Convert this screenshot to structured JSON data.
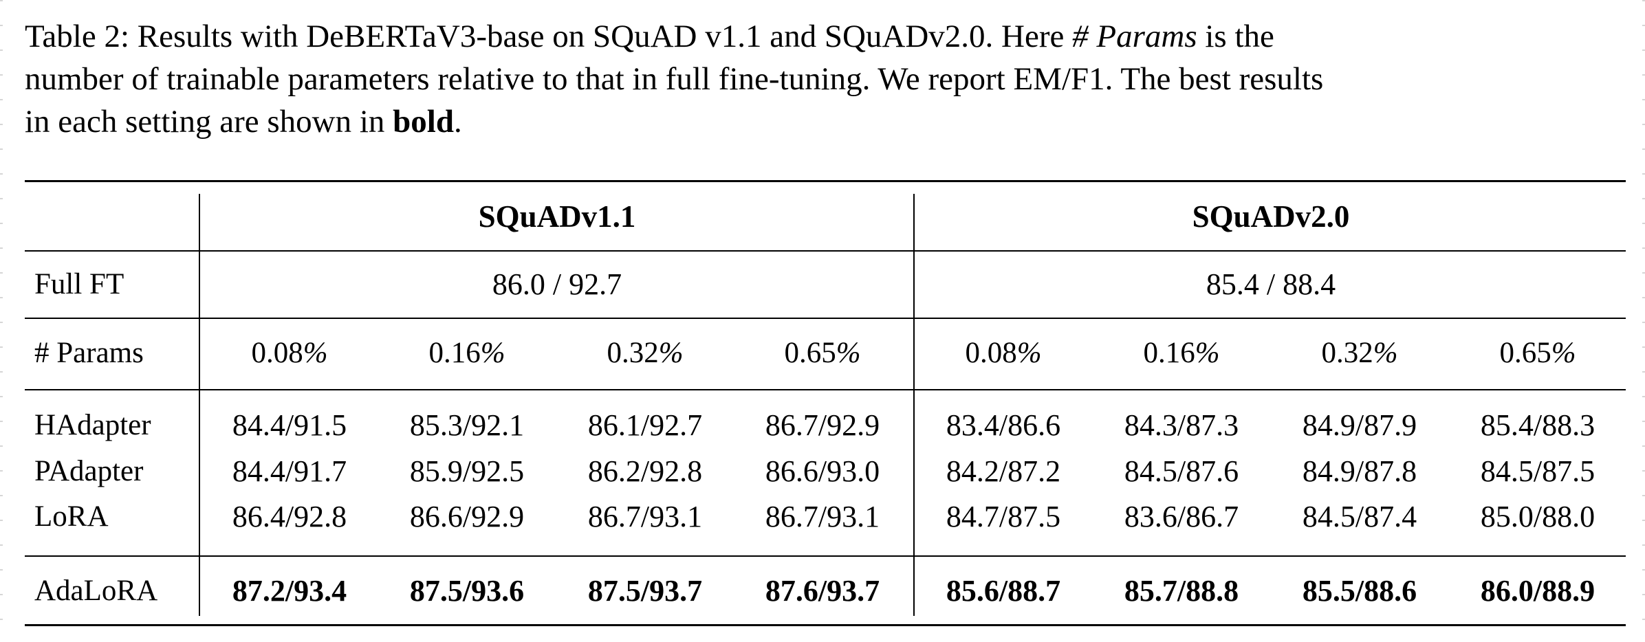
{
  "caption": {
    "line1_prefix": "Table 2: Results with DeBERTaV3-base on SQuAD v1.1 and SQuADv2.0. Here ",
    "line1_italic": "# Params",
    "line1_suffix": " is the",
    "line2": "number of trainable parameters relative to that in full fine-tuning. We report EM/F1. The best results",
    "line3_prefix": "in each setting are shown in ",
    "line3_bold": "bold",
    "line3_suffix": "."
  },
  "table": {
    "group_headers": [
      "SQuADv1.1",
      "SQuADv2.0"
    ],
    "full_ft": {
      "label": "Full FT",
      "values": [
        "86.0 / 92.7",
        "85.4 / 88.4"
      ]
    },
    "params": {
      "label": "# Params",
      "values": [
        "0.08",
        "0.16",
        "0.32",
        "0.65",
        "0.08",
        "0.16",
        "0.32",
        "0.65"
      ],
      "unit": "%"
    },
    "rows": [
      {
        "label": "HAdapter",
        "values": [
          "84.4/91.5",
          "85.3/92.1",
          "86.1/92.7",
          "86.7/92.9",
          "83.4/86.6",
          "84.3/87.3",
          "84.9/87.9",
          "85.4/88.3"
        ]
      },
      {
        "label": "PAdapter",
        "values": [
          "84.4/91.7",
          "85.9/92.5",
          "86.2/92.8",
          "86.6/93.0",
          "84.2/87.2",
          "84.5/87.6",
          "84.9/87.8",
          "84.5/87.5"
        ]
      },
      {
        "label": "LoRA",
        "values": [
          "86.4/92.8",
          "86.6/92.9",
          "86.7/93.1",
          "86.7/93.1",
          "84.7/87.5",
          "83.6/86.7",
          "84.5/87.4",
          "85.0/88.0"
        ]
      }
    ],
    "final_row": {
      "label": "AdaLoRA",
      "values": [
        "87.2/93.4",
        "87.5/93.6",
        "87.5/93.7",
        "87.6/93.7",
        "85.6/88.7",
        "85.7/88.8",
        "85.5/88.6",
        "86.0/88.9"
      ]
    }
  }
}
